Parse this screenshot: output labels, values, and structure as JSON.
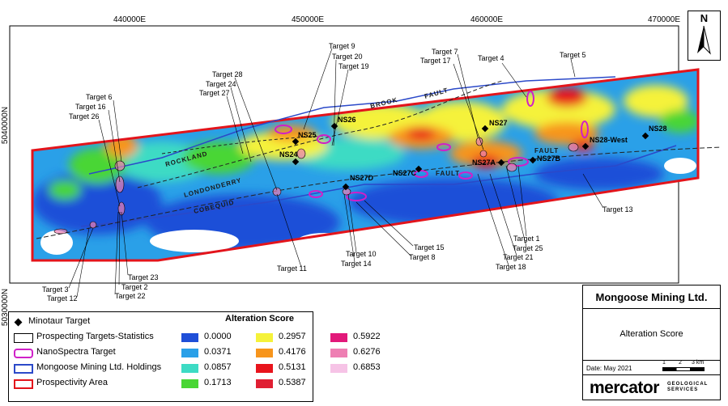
{
  "map": {
    "eastings": [
      "440000E",
      "450000E",
      "460000E",
      "470000E"
    ],
    "northings": [
      "5040000N",
      "5030000N"
    ],
    "faults": [
      "BROOK",
      "FAULT",
      "FAULT",
      "ROCKLAND",
      "LONDONDERRY",
      "COBEQUID",
      "FAULT"
    ],
    "minotaur_targets": [
      "NS25",
      "NS26",
      "NS27",
      "NS28",
      "NS24",
      "NS28-West",
      "NS27D",
      "NS27C",
      "NS27A",
      "NS27B"
    ],
    "prospect_targets": [
      "Target 9",
      "Target 20",
      "Target 19",
      "Target 7",
      "Target 17",
      "Target 4",
      "Target 5",
      "Target 28",
      "Target 24",
      "Target 27",
      "Target 6",
      "Target 16",
      "Target 26",
      "Target 13",
      "Target 1",
      "Target 25",
      "Target 21",
      "Target 18",
      "Target 15",
      "Target 8",
      "Target 10",
      "Target 14",
      "Target 11",
      "Target 23",
      "Target 2",
      "Target 22",
      "Target 3",
      "Target 12"
    ]
  },
  "legend": {
    "items": [
      {
        "label": "Minotaur Target",
        "icon": "diamond-icon"
      },
      {
        "label": "Prospecting Targets-Statistics",
        "icon": "outline-box"
      },
      {
        "label": "NanoSpectra Target",
        "icon": "magenta-rounded-box"
      },
      {
        "label": "Mongoose Mining Ltd. Holdings",
        "icon": "blue-box"
      },
      {
        "label": "Prospectivity Area",
        "icon": "red-box"
      }
    ],
    "score_title": "Alteration Score",
    "scores": [
      {
        "value": "0.0000",
        "color": "#1f4fd8"
      },
      {
        "value": "0.0371",
        "color": "#2aa0e8"
      },
      {
        "value": "0.0857",
        "color": "#3ddbc4"
      },
      {
        "value": "0.1713",
        "color": "#49d634"
      },
      {
        "value": "0.2957",
        "color": "#f5f23a"
      },
      {
        "value": "0.4176",
        "color": "#f7951c"
      },
      {
        "value": "0.5131",
        "color": "#e8141c"
      },
      {
        "value": "0.5387",
        "color": "#e01f33"
      },
      {
        "value": "0.5922",
        "color": "#e2197a"
      },
      {
        "value": "0.6276",
        "color": "#ee7fb3"
      },
      {
        "value": "0.6853",
        "color": "#f6c3e6"
      }
    ]
  },
  "title_block": {
    "company": "Mongoose Mining Ltd.",
    "subtitle": "Alteration Score",
    "date": "Date: May 2021",
    "scale_labels": [
      "1",
      "2",
      "3 km"
    ],
    "logo_word": "mercator",
    "logo_sub": [
      "GEOLOGICAL",
      "SERVICES"
    ]
  },
  "north_label": "N",
  "colors": {
    "prospectivity": "#e3141b",
    "holdings": "#2b49c9",
    "nanospectra": "#d020c8"
  }
}
